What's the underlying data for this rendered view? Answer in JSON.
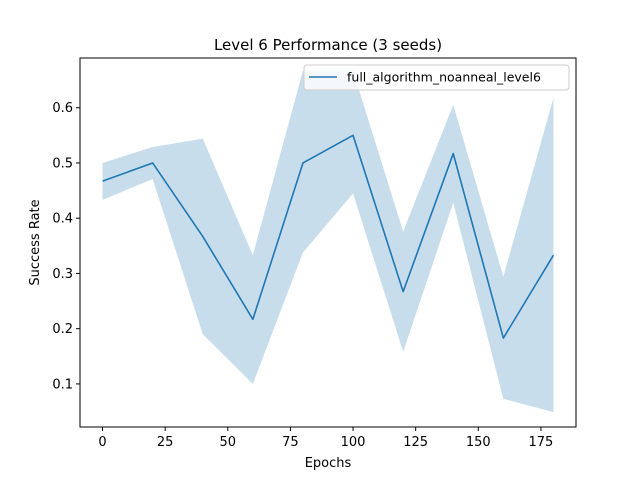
{
  "chart_data": {
    "type": "line",
    "title": "Level 6 Performance (3 seeds)",
    "xlabel": "Epochs",
    "ylabel": "Success Rate",
    "xlim": [
      -9,
      189
    ],
    "ylim": [
      0.022,
      0.69
    ],
    "xticks": [
      0,
      25,
      50,
      75,
      100,
      125,
      150,
      175
    ],
    "yticks": [
      0.1,
      0.2,
      0.3,
      0.4,
      0.5,
      0.6
    ],
    "ytick_labels": [
      "0.1",
      "0.2",
      "0.3",
      "0.4",
      "0.5",
      "0.6"
    ],
    "grid": false,
    "legend_position": "top-right",
    "series": [
      {
        "name": "full_algorithm_noanneal_level6",
        "color": "#1f77b4",
        "band_color": "#1f77b4",
        "x": [
          0,
          20,
          40,
          60,
          80,
          100,
          120,
          140,
          160,
          180
        ],
        "y": [
          0.467,
          0.5,
          0.367,
          0.217,
          0.5,
          0.55,
          0.267,
          0.517,
          0.183,
          0.333
        ],
        "lower": [
          0.433,
          0.471,
          0.19,
          0.1,
          0.338,
          0.445,
          0.158,
          0.428,
          0.073,
          0.049
        ],
        "upper": [
          0.5,
          0.529,
          0.544,
          0.333,
          0.667,
          0.667,
          0.376,
          0.605,
          0.294,
          0.618
        ]
      }
    ]
  }
}
